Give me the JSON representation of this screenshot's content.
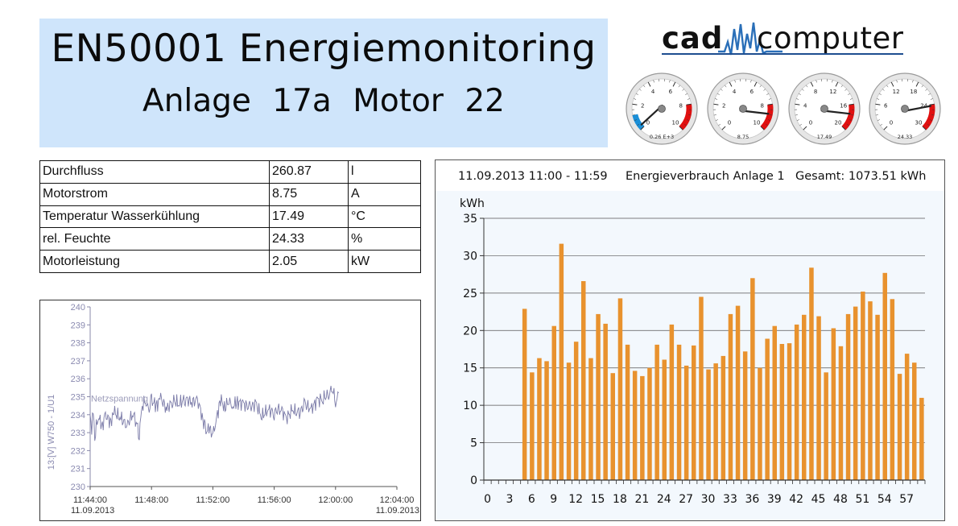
{
  "header": {
    "title": "EN50001 Energiemonitoring",
    "subtitle": "Anlage 17a  Motor 22"
  },
  "logo": {
    "part1": "cad",
    "part2": "computer"
  },
  "gauges": [
    {
      "name": "gauge-durchfluss",
      "ticks": [
        "0",
        "2",
        "4",
        "6",
        "8",
        "10"
      ],
      "max": 10,
      "value": 0.26,
      "readout": "0.26 E+3",
      "blue_zone": true
    },
    {
      "name": "gauge-motorstrom",
      "ticks": [
        "0",
        "2",
        "4",
        "6",
        "8",
        "10"
      ],
      "max": 10,
      "value": 8.75,
      "readout": "8.75",
      "blue_zone": false
    },
    {
      "name": "gauge-temperatur",
      "ticks": [
        "0",
        "4",
        "8",
        "12",
        "16",
        "20"
      ],
      "max": 20,
      "value": 17.49,
      "readout": "17.49",
      "blue_zone": false
    },
    {
      "name": "gauge-feuchte",
      "ticks": [
        "0",
        "6",
        "12",
        "18",
        "24",
        "30"
      ],
      "max": 30,
      "value": 24.33,
      "readout": "24.33",
      "blue_zone": false
    }
  ],
  "measurements": [
    {
      "label": "Durchfluss",
      "value": "260.87",
      "unit": "l"
    },
    {
      "label": "Motorstrom",
      "value": "8.75",
      "unit": "A"
    },
    {
      "label": "Temperatur Wasserkühlung",
      "value": "17.49",
      "unit": "°C"
    },
    {
      "label": "rel. Feuchte",
      "value": "24.33",
      "unit": "%"
    },
    {
      "label": "Motorleistung",
      "value": "2.05",
      "unit": "kW"
    }
  ],
  "chart_data": [
    {
      "type": "line",
      "ylabel": "13:[V] W750 - 1/U1",
      "series": [
        {
          "name": "Netzspannung"
        }
      ],
      "y_ticks": [
        "240",
        "239",
        "238",
        "237",
        "236",
        "235",
        "234",
        "233",
        "232",
        "231",
        "230"
      ],
      "ylim": [
        230,
        240
      ],
      "x_ticks": [
        "11:44:00",
        "11:48:00",
        "11:52:00",
        "11:56:00",
        "12:00:00",
        "12:04:00"
      ],
      "x_start_label": "11.09.2013",
      "x_end_label": "11.09.2013",
      "x_minutes_range": [
        0,
        20
      ],
      "x": [
        0,
        0.1,
        0.2,
        0.3,
        0.5,
        0.8,
        1.0,
        1.3,
        1.6,
        2.0,
        2.4,
        2.8,
        3.2,
        3.4,
        3.6,
        3.8,
        4.0,
        4.3,
        4.6,
        5.0,
        5.4,
        5.8,
        6.2,
        6.6,
        7.0,
        7.3,
        7.5,
        7.8,
        8.0,
        8.2,
        8.5,
        8.8,
        9.0,
        9.3,
        9.6,
        10.0,
        10.4,
        10.8,
        11.2,
        11.6,
        12.0,
        12.4,
        12.8,
        13.2,
        13.6,
        14.0,
        14.4,
        14.8,
        15.2,
        15.6,
        15.8,
        16.0,
        16.2
      ],
      "y": [
        233.8,
        233.2,
        234.3,
        232.7,
        233.9,
        233.4,
        234.0,
        233.6,
        234.1,
        233.8,
        233.4,
        234.1,
        233.0,
        234.5,
        234.8,
        234.2,
        234.8,
        234.5,
        234.9,
        234.3,
        234.8,
        234.6,
        234.9,
        234.7,
        234.8,
        234.0,
        233.1,
        233.2,
        232.9,
        233.6,
        234.9,
        234.3,
        234.8,
        234.5,
        234.7,
        234.6,
        234.4,
        234.6,
        233.9,
        234.3,
        234.1,
        234.4,
        233.8,
        234.3,
        234.0,
        234.6,
        234.3,
        234.8,
        234.9,
        235.2,
        235.5,
        234.7,
        235.0
      ]
    },
    {
      "type": "bar",
      "title": "Energieverbrauch Anlage 1",
      "time_range": "11.09.2013 11:00 - 11:59",
      "total": "Gesamt: 1073.51 kWh",
      "ylabel": "kWh",
      "ylim": [
        0,
        35
      ],
      "y_ticks": [
        0,
        5,
        10,
        15,
        20,
        25,
        30,
        35
      ],
      "x_ticks": [
        "0",
        "3",
        "6",
        "9",
        "12",
        "15",
        "18",
        "21",
        "24",
        "27",
        "30",
        "33",
        "36",
        "39",
        "42",
        "45",
        "48",
        "51",
        "54",
        "57"
      ],
      "categories": [
        0,
        1,
        2,
        3,
        4,
        5,
        6,
        7,
        8,
        9,
        10,
        11,
        12,
        13,
        14,
        15,
        16,
        17,
        18,
        19,
        20,
        21,
        22,
        23,
        24,
        25,
        26,
        27,
        28,
        29,
        30,
        31,
        32,
        33,
        34,
        35,
        36,
        37,
        38,
        39,
        40,
        41,
        42,
        43,
        44,
        45,
        46,
        47,
        48,
        49,
        50,
        51,
        52,
        53,
        54,
        55,
        56,
        57,
        58,
        59
      ],
      "values": [
        0,
        0,
        0,
        0,
        0,
        22.9,
        14.4,
        16.3,
        15.9,
        20.6,
        31.6,
        15.7,
        18.5,
        26.6,
        16.3,
        22.2,
        20.9,
        14.3,
        24.3,
        18.1,
        14.6,
        13.9,
        15.0,
        18.1,
        16.1,
        20.8,
        18.1,
        15.3,
        18.0,
        24.5,
        14.8,
        15.6,
        16.6,
        22.2,
        23.3,
        17.2,
        27.0,
        15.0,
        18.9,
        20.6,
        18.2,
        18.3,
        20.8,
        22.1,
        28.4,
        21.9,
        14.4,
        20.3,
        17.9,
        22.2,
        23.2,
        25.2,
        23.9,
        22.1,
        27.7,
        24.2,
        14.2,
        16.9,
        15.7,
        11.0
      ],
      "bar_color": "#e8922e"
    }
  ]
}
